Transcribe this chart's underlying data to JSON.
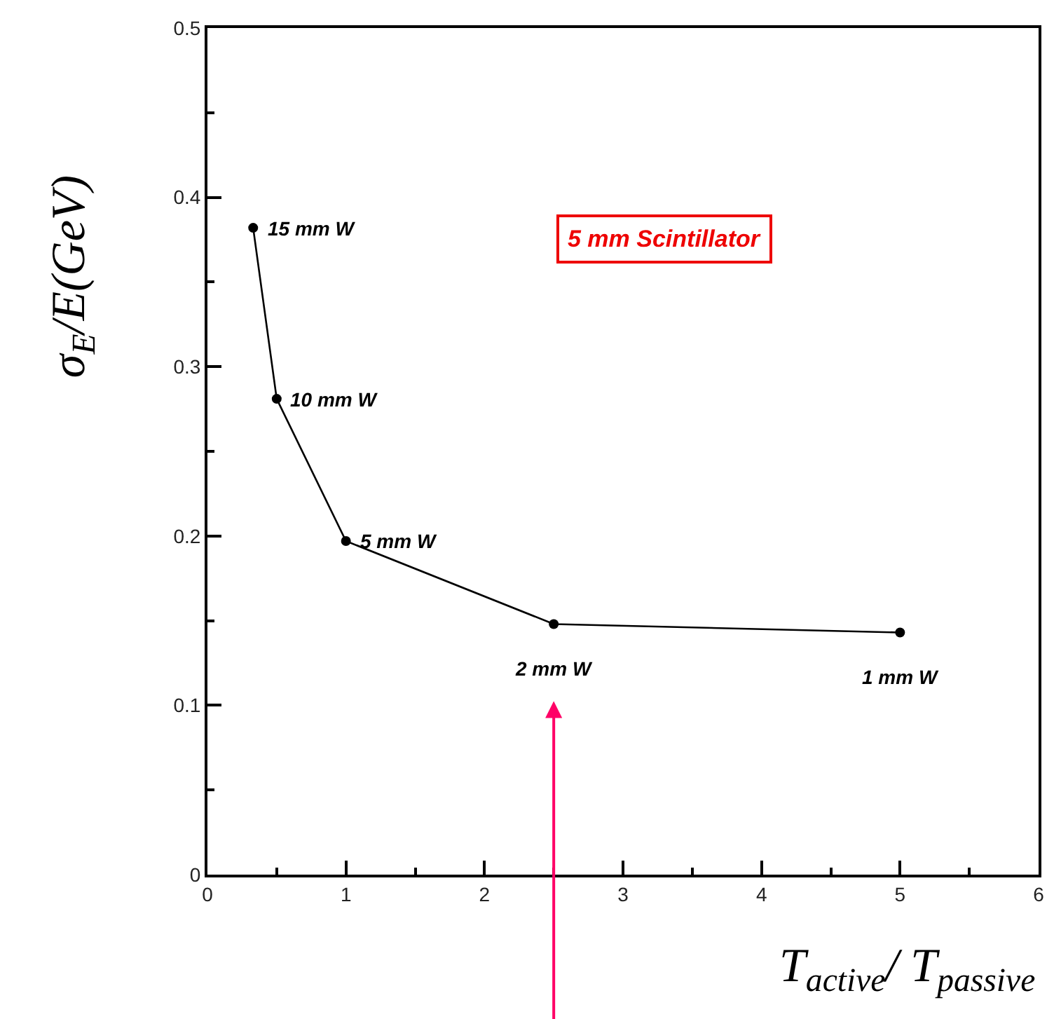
{
  "chart_data": {
    "type": "line",
    "xlabel": "T$_{active}$/ T$_{passive}$",
    "ylabel": "σ$_{E}$/E(GeV)",
    "x": [
      0.33,
      0.5,
      1,
      2.5,
      5
    ],
    "series": [
      {
        "color": "#000000",
        "values": [
          0.382,
          0.281,
          0.197,
          0.148,
          0.143
        ]
      }
    ],
    "xlim": [
      0,
      6
    ],
    "xticks": [
      0,
      1,
      2,
      3,
      4,
      5,
      6
    ],
    "ylim": [
      0,
      0.5
    ],
    "yticks": [
      0,
      0.1,
      0.2,
      0.3,
      0.4,
      0.5
    ],
    "marker": "circle",
    "line_style": "solid",
    "annotations": [
      "5 mm Scintillator",
      {
        "text": "15 mm W",
        "x": 0.33,
        "y": 0.382
      },
      {
        "text": "10 mm W",
        "x": 0.5,
        "y": 0.281
      },
      {
        "text": "5 mm W",
        "x": 1,
        "y": 0.197
      },
      {
        "text": "2 mm W",
        "x": 2.5,
        "y": 0.148
      },
      {
        "text": "1 mm W",
        "x": 5,
        "y": 0.143
      }
    ]
  }
}
